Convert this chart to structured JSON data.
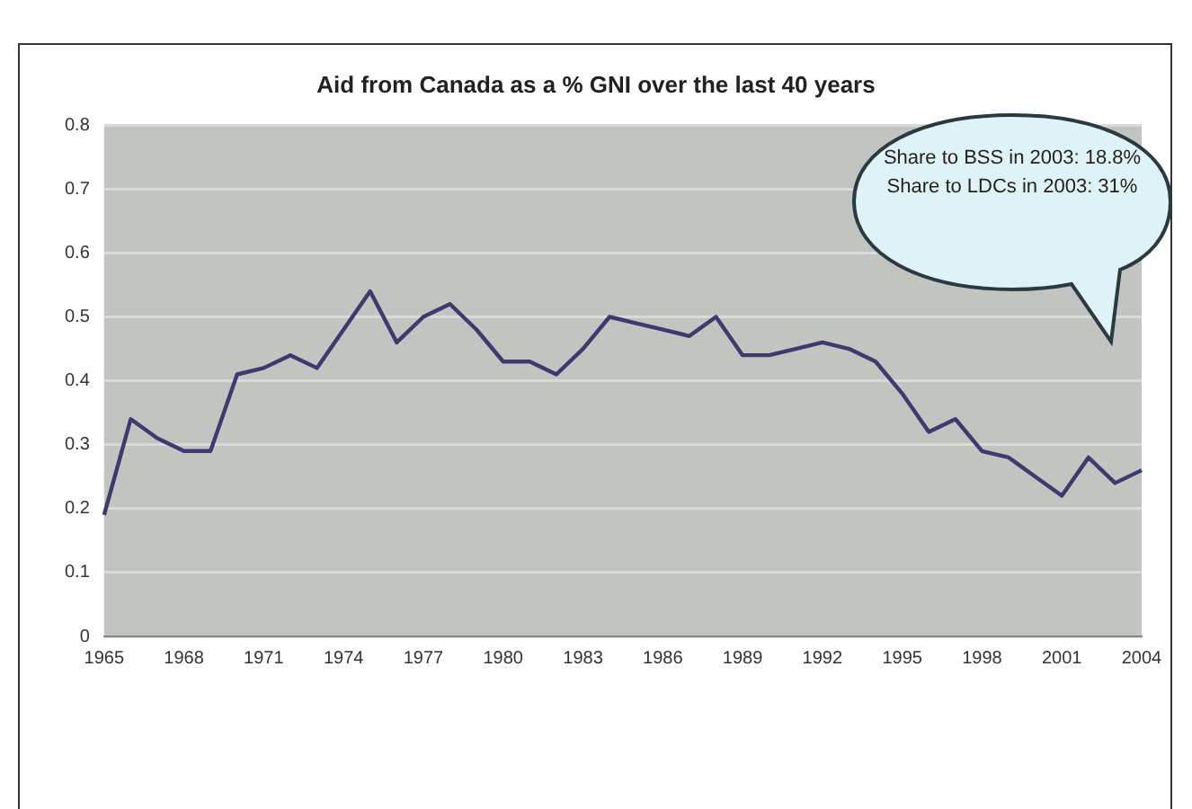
{
  "chart_data": {
    "type": "line",
    "title": "Aid from Canada as a % GNI over the last 40 years",
    "categories": [
      "1965",
      null,
      null,
      "1968",
      null,
      null,
      "1971",
      null,
      null,
      "1974",
      null,
      null,
      "1977",
      null,
      null,
      "1980",
      null,
      null,
      "1983",
      null,
      null,
      "1986",
      null,
      null,
      "1989",
      null,
      null,
      "1992",
      null,
      null,
      "1995",
      null,
      null,
      "1998",
      null,
      null,
      "2001",
      null,
      null,
      "2004"
    ],
    "series": [
      {
        "color": "#3b3b6e",
        "values": [
          0.19,
          0.34,
          0.31,
          0.29,
          0.29,
          0.41,
          0.42,
          0.44,
          0.42,
          0.48,
          0.54,
          0.46,
          0.5,
          0.52,
          0.48,
          0.43,
          0.43,
          0.41,
          0.45,
          0.5,
          0.49,
          0.48,
          0.47,
          0.5,
          0.44,
          0.44,
          0.45,
          0.46,
          0.45,
          0.43,
          0.38,
          0.32,
          0.34,
          0.29,
          0.28,
          0.25,
          0.22,
          0.28,
          0.24,
          0.26
        ]
      }
    ],
    "ylim": [
      0,
      0.8
    ],
    "yticks": [
      0,
      0.1,
      0.2,
      0.3,
      0.4,
      0.5,
      0.6,
      0.7,
      0.8
    ],
    "grid": "y",
    "legend": false,
    "marker": "none",
    "line_style": "solid",
    "annotations": [
      "Share to BSS in 2003: 18.8%",
      "Share to LDCs in 2003: 31%"
    ]
  }
}
